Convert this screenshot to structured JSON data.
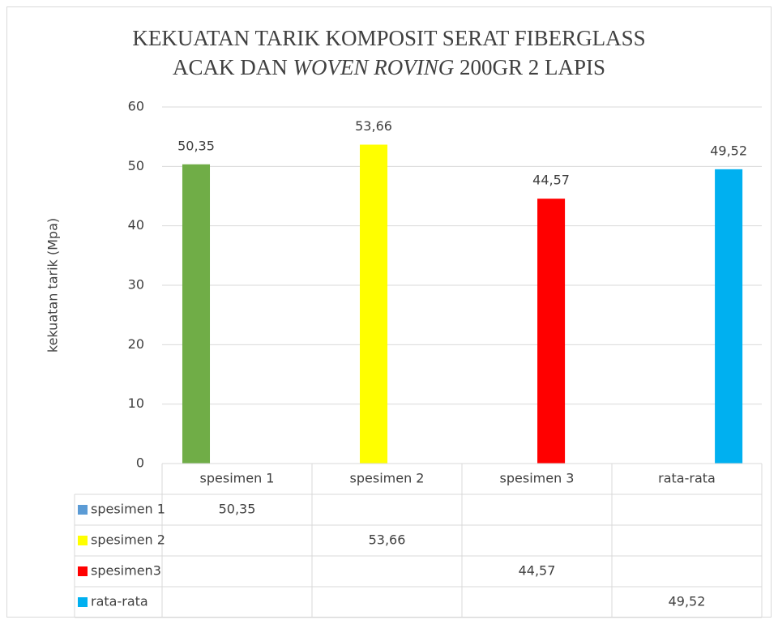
{
  "chart_data": {
    "type": "bar",
    "title_lines": [
      [
        "KEKUATAN TARIK KOMPOSIT SERAT FIBERGLASS"
      ],
      [
        "ACAK DAN",
        "WOVEN ROVING",
        "200GR 2 LAPIS"
      ]
    ],
    "title_italic": [
      [
        false
      ],
      [
        false,
        true,
        false
      ]
    ],
    "y_label": "kekuatan tarik (Mpa)",
    "categories": [
      "spesimen 1",
      "spesimen 2",
      "spesimen 3",
      "rata-rata"
    ],
    "series": [
      {
        "name": "spesimen 1",
        "color": "#5b9bd5",
        "point_color": "#70ad47",
        "values": [
          50.35,
          null,
          null,
          null
        ],
        "value_labels": [
          "50,35",
          null,
          null,
          null
        ]
      },
      {
        "name": "spesimen 2",
        "color": "#ffff00",
        "values": [
          null,
          53.66,
          null,
          null
        ],
        "value_labels": [
          null,
          "53,66",
          null,
          null
        ]
      },
      {
        "name": "spesimen3",
        "color": "#ff0000",
        "values": [
          null,
          null,
          44.57,
          null
        ],
        "value_labels": [
          null,
          null,
          "44,57",
          null
        ]
      },
      {
        "name": "rata-rata",
        "color": "#00b0f0",
        "values": [
          null,
          null,
          null,
          49.52
        ],
        "value_labels": [
          null,
          null,
          null,
          "49,52"
        ]
      }
    ],
    "ylim": [
      0,
      60
    ],
    "yticks": [
      0,
      10,
      20,
      30,
      40,
      50,
      60
    ],
    "grid": true,
    "data_table": true
  }
}
